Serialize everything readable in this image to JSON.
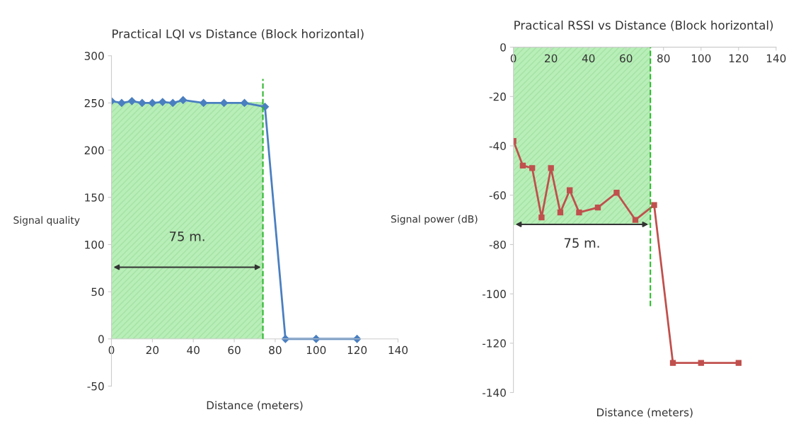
{
  "chart_data": [
    {
      "type": "line",
      "title": "Practical LQI vs Distance (Block horizontal)",
      "xlabel": "Distance (meters)",
      "ylabel": "Signal quality",
      "x": [
        0,
        5,
        10,
        15,
        20,
        25,
        30,
        35,
        45,
        55,
        65,
        75,
        85,
        100,
        120
      ],
      "series": [
        {
          "color": "#4a7fc0",
          "values": [
            252,
            250,
            252,
            250,
            250,
            251,
            250,
            253,
            250,
            250,
            250,
            246,
            0,
            0,
            0
          ]
        }
      ],
      "marker": "diamond",
      "line_style": "solid",
      "grid": false,
      "legend": false,
      "xlim": [
        0,
        140
      ],
      "xticks": [
        0,
        20,
        40,
        60,
        80,
        100,
        120,
        140
      ],
      "ylim": [
        -50,
        300
      ],
      "yticks": [
        -50,
        0,
        50,
        100,
        150,
        200,
        250,
        300
      ],
      "ref_lines": [
        {
          "axis": "x",
          "value": 74,
          "color": "#2eb82e",
          "line_style": "dashed"
        }
      ],
      "bands": [
        {
          "axis": "x",
          "from": 0,
          "to": 74,
          "color": "#7ee07e"
        }
      ],
      "annotations": [
        "75 m."
      ]
    },
    {
      "type": "line",
      "title": "Practical RSSI vs Distance (Block horizontal)",
      "xlabel": "Distance (meters)",
      "ylabel": "Signal power (dB)",
      "x": [
        0,
        5,
        10,
        15,
        20,
        25,
        30,
        35,
        45,
        55,
        65,
        75,
        85,
        100,
        120
      ],
      "series": [
        {
          "color": "#c0504d",
          "values": [
            -38,
            -48,
            -49,
            -69,
            -49,
            -67,
            -58,
            -67,
            -65,
            -59,
            -70,
            -64,
            -128,
            -128,
            -128
          ]
        }
      ],
      "marker": "square",
      "line_style": "solid",
      "grid": false,
      "legend": false,
      "xlim": [
        0,
        140
      ],
      "xticks": [
        0,
        20,
        40,
        60,
        80,
        100,
        120,
        140
      ],
      "ylim": [
        -140,
        0
      ],
      "yticks": [
        -140,
        -120,
        -100,
        -80,
        -60,
        -40,
        -20,
        0
      ],
      "ref_lines": [
        {
          "axis": "x",
          "value": 73,
          "color": "#2eb82e",
          "line_style": "dashed"
        }
      ],
      "bands": [
        {
          "axis": "x",
          "from": 0,
          "to": 73,
          "color": "#7ee07e"
        }
      ],
      "annotations": [
        "75 m."
      ]
    }
  ]
}
